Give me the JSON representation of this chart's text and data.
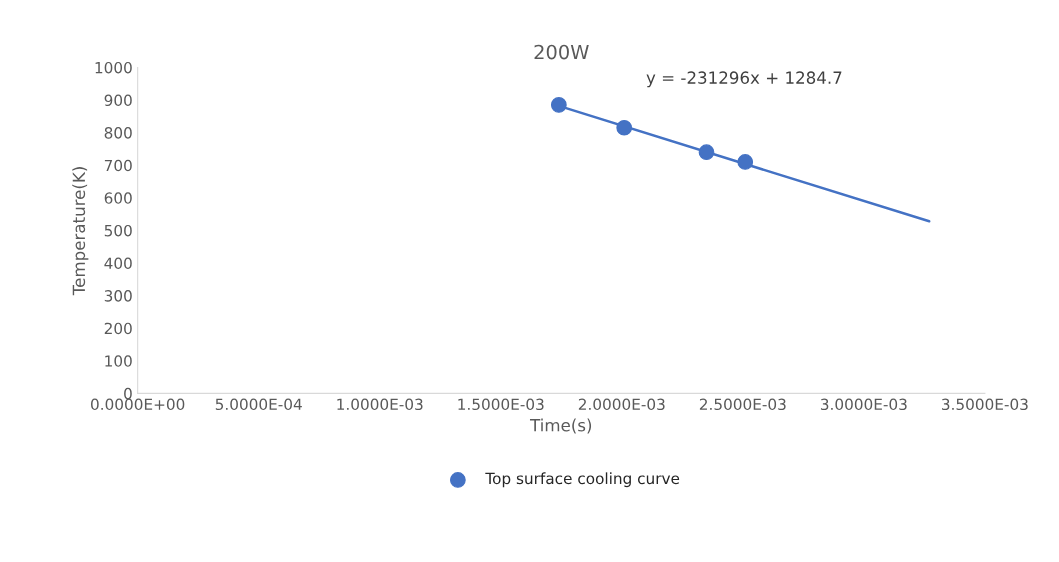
{
  "chart_data": {
    "type": "scatter",
    "title": "200W",
    "xlabel": "Time(s)",
    "ylabel": "Temperature(K)",
    "x": [
      0.00174,
      0.00201,
      0.00235,
      0.00251
    ],
    "series": [
      {
        "name": "Top surface cooling curve",
        "color": "#4472c4",
        "marker": "circle",
        "values": [
          885,
          815,
          740,
          710
        ]
      },
      {
        "type": "line",
        "color": "#4472c4",
        "marker": "none",
        "x": [
          0.00174,
          0.00327
        ],
        "values": [
          882,
          528
        ]
      }
    ],
    "xlim": [
      0,
      0.0035
    ],
    "ylim": [
      0,
      1000
    ],
    "xticks": [
      {
        "value": 0,
        "label": "0.0000E+00"
      },
      {
        "value": 0.0005,
        "label": "5.0000E-04"
      },
      {
        "value": 0.001,
        "label": "1.0000E-03"
      },
      {
        "value": 0.0015,
        "label": "1.5000E-03"
      },
      {
        "value": 0.002,
        "label": "2.0000E-03"
      },
      {
        "value": 0.0025,
        "label": "2.5000E-03"
      },
      {
        "value": 0.003,
        "label": "3.0000E-03"
      },
      {
        "value": 0.0035,
        "label": "3.5000E-03"
      }
    ],
    "yticks": [
      0,
      100,
      200,
      300,
      400,
      500,
      600,
      700,
      800,
      900,
      1000
    ],
    "annotations": [
      "y = -231296x + 1284.7"
    ],
    "legend": "bottom",
    "grid": false
  }
}
